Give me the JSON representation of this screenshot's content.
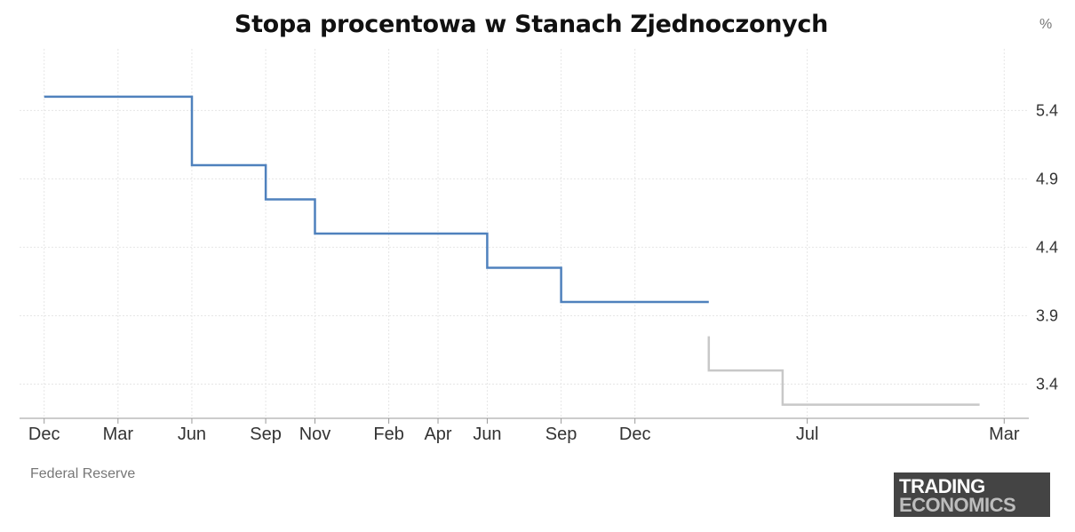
{
  "chart_data": {
    "type": "line",
    "title": "Stopa procentowa w Stanach Zjednoczonych",
    "unit": "%",
    "source": "Federal Reserve",
    "y_ticks": [
      3.4,
      3.9,
      4.4,
      4.9,
      5.4
    ],
    "ylim": [
      3.15,
      5.85
    ],
    "x_tick_labels": [
      "Dec",
      "Mar",
      "Jun",
      "Sep",
      "Nov",
      "Feb",
      "Apr",
      "Jun",
      "Sep",
      "Dec",
      "Jul",
      "Mar"
    ],
    "x_ticks": [
      "2022-12",
      "2023-03",
      "2023-06",
      "2023-09",
      "2023-11",
      "2024-02",
      "2024-04",
      "2024-06",
      "2024-09",
      "2024-12",
      "2025-07",
      "2026-03"
    ],
    "xlim": [
      "2022-11",
      "2026-04"
    ],
    "grid": true,
    "step": true,
    "series": [
      {
        "color": "#4f81bd",
        "x": [
          "2022-12",
          "2023-03",
          "2023-06",
          "2023-09",
          "2023-11",
          "2024-02",
          "2024-04",
          "2024-06",
          "2024-09",
          "2024-12",
          "2025-03"
        ],
        "y": [
          5.5,
          5.5,
          5.5,
          5.0,
          4.75,
          4.5,
          4.5,
          4.5,
          4.25,
          4.0,
          4.0
        ]
      },
      {
        "color": "#c8c8c8",
        "x": [
          "2025-03",
          "2025-06",
          "2025-09",
          "2025-12",
          "2026-02"
        ],
        "y": [
          3.75,
          3.5,
          3.25,
          3.25,
          3.25
        ]
      }
    ]
  },
  "logo": {
    "line1": "TRADING",
    "line2": "ECONOMICS"
  }
}
